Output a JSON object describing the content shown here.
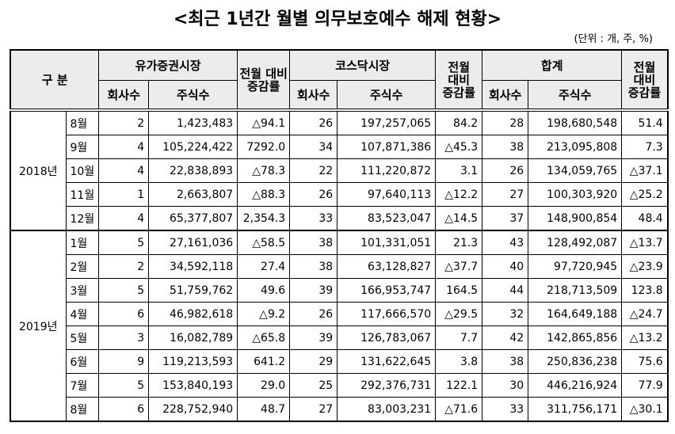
{
  "title": "<최근 1년간 월별 의무보호예수 해제 현황>",
  "unit": "(단위 : 개, 주, %)",
  "table": {
    "header_row1": [
      "구 분",
      "유가증권시장",
      "전월 대비 증감률",
      "코스닥시장",
      "전월 대비 증감률",
      "합계",
      "전월 대비 증감률"
    ],
    "header_row2": [
      "회사수",
      "주식수",
      "회사수",
      "주식수",
      "회사수",
      "주식수"
    ],
    "groups": [
      {
        "year": "2018년",
        "rows": [
          [
            "8월",
            "2",
            "1,423,483",
            "△94.1",
            "26",
            "197,257,065",
            "84.2",
            "28",
            "198,680,548",
            "51.4"
          ],
          [
            "9월",
            "4",
            "105,224,422",
            "7292.0",
            "34",
            "107,871,386",
            "△45.3",
            "38",
            "213,095,808",
            "7.3"
          ],
          [
            "10월",
            "4",
            "22,838,893",
            "△78.3",
            "22",
            "111,220,872",
            "3.1",
            "26",
            "134,059,765",
            "△37.1"
          ],
          [
            "11월",
            "1",
            "2,663,807",
            "△88.3",
            "26",
            "97,640,113",
            "△12.2",
            "27",
            "100,303,920",
            "△25.2"
          ],
          [
            "12월",
            "4",
            "65,377,807",
            "2,354.3",
            "33",
            "83,523,047",
            "△14.5",
            "37",
            "148,900,854",
            "48.4"
          ]
        ]
      },
      {
        "year": "2019년",
        "rows": [
          [
            "1월",
            "5",
            "27,161,036",
            "△58.5",
            "38",
            "101,331,051",
            "21.3",
            "43",
            "128,492,087",
            "△13.7"
          ],
          [
            "2월",
            "2",
            "34,592,118",
            "27.4",
            "38",
            "63,128,827",
            "△37.7",
            "40",
            "97,720,945",
            "△23.9"
          ],
          [
            "3월",
            "5",
            "51,759,762",
            "49.6",
            "39",
            "166,953,747",
            "164.5",
            "44",
            "218,713,509",
            "123.8"
          ],
          [
            "4월",
            "6",
            "46,982,618",
            "△9.2",
            "26",
            "117,666,570",
            "△29.5",
            "32",
            "164,649,188",
            "△24.7"
          ],
          [
            "5월",
            "3",
            "16,082,789",
            "△65.8",
            "39",
            "126,783,067",
            "7.7",
            "42",
            "142,865,856",
            "△13.2"
          ],
          [
            "6월",
            "9",
            "119,213,593",
            "641.2",
            "29",
            "131,622,645",
            "3.8",
            "38",
            "250,836,238",
            "75.6"
          ],
          [
            "7월",
            "5",
            "153,840,193",
            "29.0",
            "25",
            "292,376,731",
            "122.1",
            "30",
            "446,216,924",
            "77.9"
          ],
          [
            "8월",
            "6",
            "228,752,940",
            "48.7",
            "27",
            "83,003,231",
            "△71.6",
            "33",
            "311,756,171",
            "△30.1"
          ]
        ]
      }
    ]
  }
}
